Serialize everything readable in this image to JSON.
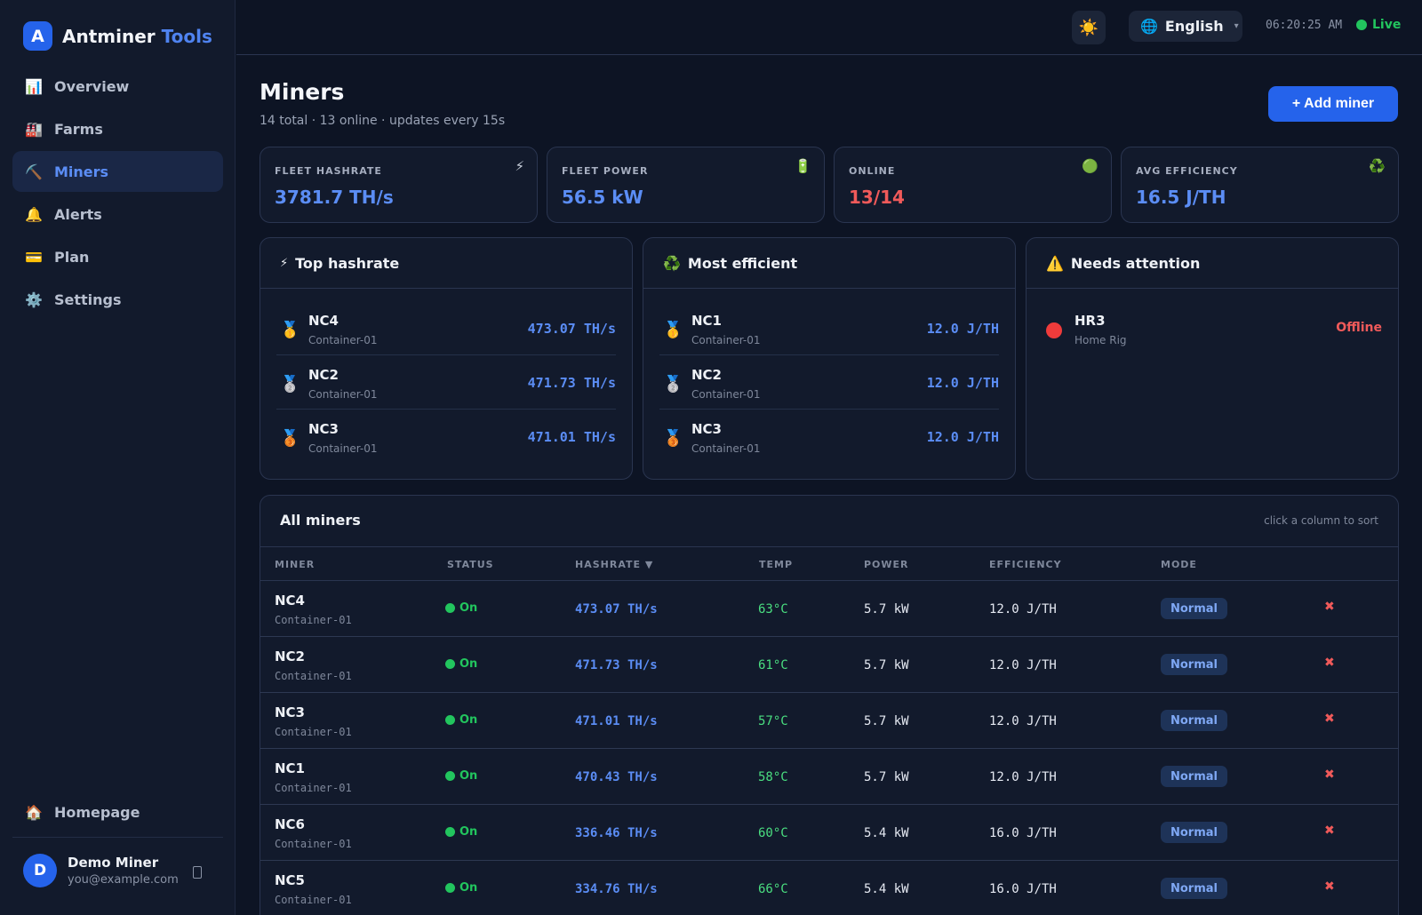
{
  "brand": {
    "logo_letter": "A",
    "name": "Antminer",
    "accent": "Tools"
  },
  "nav": [
    {
      "label": "Overview",
      "icon": "📊",
      "active": false
    },
    {
      "label": "Farms",
      "icon": "🏭",
      "active": false
    },
    {
      "label": "Miners",
      "icon": "⛏️",
      "active": true
    },
    {
      "label": "Alerts",
      "icon": "🔔",
      "active": false
    },
    {
      "label": "Plan",
      "icon": "💳",
      "active": false
    },
    {
      "label": "Settings",
      "icon": "⚙️",
      "active": false
    }
  ],
  "homepage": {
    "label": "Homepage",
    "icon": "🏠"
  },
  "user": {
    "initial": "D",
    "name": "Demo Miner",
    "email": "you@example.com"
  },
  "topbar": {
    "theme_icon": "☀️",
    "lang_icon": "🌐",
    "language": "English",
    "caret": "▾",
    "time": "06:20:25 AM",
    "status": "Live"
  },
  "page": {
    "title": "Miners",
    "subtitle": "14 total · 13 online · updates every 15s",
    "add_button": "+ Add miner"
  },
  "stats": [
    {
      "label": "FLEET HASHRATE",
      "value": "3781.7 TH/s",
      "icon": "⚡",
      "color": "#5b8df5"
    },
    {
      "label": "FLEET POWER",
      "value": "56.5 kW",
      "icon": "🔋",
      "color": "#5b8df5"
    },
    {
      "label": "ONLINE",
      "value": "13/14",
      "icon": "🟢",
      "color": "#f05a5a"
    },
    {
      "label": "AVG EFFICIENCY",
      "value": "16.5 J/TH",
      "icon": "♻️",
      "color": "#5b8df5"
    }
  ],
  "boards": {
    "top": {
      "icon": "⚡",
      "title": "Top hashrate",
      "rows": [
        {
          "medal": "🥇",
          "name": "NC4",
          "farm": "Container-01",
          "value": "473.07 TH/s"
        },
        {
          "medal": "🥈",
          "name": "NC2",
          "farm": "Container-01",
          "value": "471.73 TH/s"
        },
        {
          "medal": "🥉",
          "name": "NC3",
          "farm": "Container-01",
          "value": "471.01 TH/s"
        }
      ]
    },
    "efficient": {
      "icon": "♻️",
      "title": "Most efficient",
      "rows": [
        {
          "medal": "🥇",
          "name": "NC1",
          "farm": "Container-01",
          "value": "12.0 J/TH"
        },
        {
          "medal": "🥈",
          "name": "NC2",
          "farm": "Container-01",
          "value": "12.0 J/TH"
        },
        {
          "medal": "🥉",
          "name": "NC3",
          "farm": "Container-01",
          "value": "12.0 J/TH"
        }
      ]
    },
    "attention": {
      "icon": "⚠️",
      "title": "Needs attention",
      "rows": [
        {
          "name": "HR3",
          "farm": "Home Rig",
          "status": "Offline"
        }
      ]
    }
  },
  "table": {
    "title": "All miners",
    "hint": "click a column to sort",
    "headers": {
      "miner": "MINER",
      "status": "STATUS",
      "hashrate": "HASHRATE ▼",
      "temp": "TEMP",
      "power": "POWER",
      "efficiency": "EFFICIENCY",
      "mode": "MODE"
    },
    "rows": [
      {
        "name": "NC4",
        "farm": "Container-01",
        "status": "On",
        "hashrate": "473.07 TH/s",
        "temp": "63°C",
        "power": "5.7 kW",
        "efficiency": "12.0 J/TH",
        "mode": "Normal"
      },
      {
        "name": "NC2",
        "farm": "Container-01",
        "status": "On",
        "hashrate": "471.73 TH/s",
        "temp": "61°C",
        "power": "5.7 kW",
        "efficiency": "12.0 J/TH",
        "mode": "Normal"
      },
      {
        "name": "NC3",
        "farm": "Container-01",
        "status": "On",
        "hashrate": "471.01 TH/s",
        "temp": "57°C",
        "power": "5.7 kW",
        "efficiency": "12.0 J/TH",
        "mode": "Normal"
      },
      {
        "name": "NC1",
        "farm": "Container-01",
        "status": "On",
        "hashrate": "470.43 TH/s",
        "temp": "58°C",
        "power": "5.7 kW",
        "efficiency": "12.0 J/TH",
        "mode": "Normal"
      },
      {
        "name": "NC6",
        "farm": "Container-01",
        "status": "On",
        "hashrate": "336.46 TH/s",
        "temp": "60°C",
        "power": "5.4 kW",
        "efficiency": "16.0 J/TH",
        "mode": "Normal"
      },
      {
        "name": "NC5",
        "farm": "Container-01",
        "status": "On",
        "hashrate": "334.76 TH/s",
        "temp": "66°C",
        "power": "5.4 kW",
        "efficiency": "16.0 J/TH",
        "mode": "Normal"
      }
    ],
    "delete_icon": "✖"
  }
}
